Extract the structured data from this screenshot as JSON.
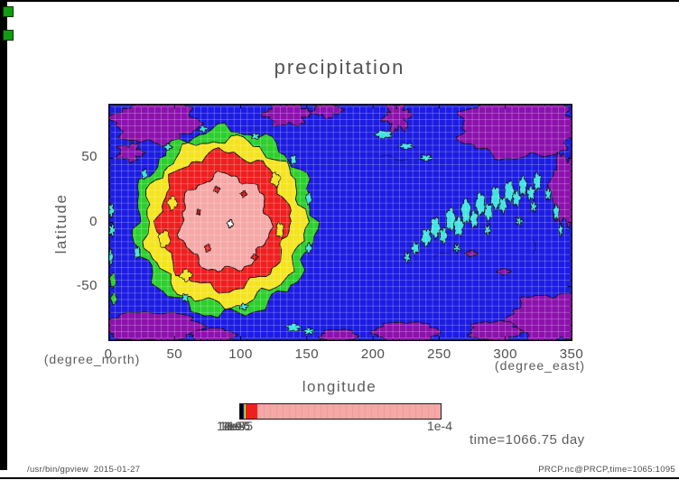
{
  "title": "precipitation",
  "axes": {
    "x": {
      "label": "longitude",
      "unit": "(degree_east)",
      "ticks": [
        "0",
        "50",
        "100",
        "150",
        "200",
        "250",
        "300",
        "350"
      ]
    },
    "y": {
      "label": "latitude",
      "unit": "(degree_north)",
      "ticks": [
        "50",
        "0",
        "-50"
      ]
    }
  },
  "colorbar": {
    "left_labels": [
      "1e-9",
      "1e-8",
      "1e-7",
      "1e-6",
      "1e-5"
    ],
    "right_label": "1e-4"
  },
  "annotations": {
    "time": "time=1066.75 day"
  },
  "footer": {
    "left": "/usr/bin/gpview  2015-01-27",
    "right": "PRCP.nc@PRCP,time=1065:1095"
  },
  "colors": {
    "background": "#ffffff",
    "map_blue": "#1c1ce2",
    "map_purple": "#8d11ad",
    "map_cyan": "#3fe2e2",
    "map_green": "#2ccf2c",
    "map_yellow": "#f4e41f",
    "map_red": "#ef1f1f",
    "map_pink": "#f5a8a6",
    "text_gray": "#5c5c5c",
    "wm_button_green": "#0d9d0d"
  },
  "chart_data": {
    "type": "heatmap",
    "subtype": "filled-contour-map",
    "title": "precipitation",
    "xlabel": "longitude",
    "ylabel": "latitude",
    "x_unit": "(degree_east)",
    "y_unit": "(degree_north)",
    "xlim": [
      0,
      351
    ],
    "ylim": [
      -92,
      92
    ],
    "xticks": [
      0,
      50,
      100,
      150,
      200,
      250,
      300,
      350
    ],
    "yticks": [
      -50,
      0,
      50
    ],
    "grid": true,
    "grid_interval_deg": 5,
    "contour_levels": [
      "1e-9",
      "1e-8",
      "1e-7",
      "1e-6",
      "1e-5",
      "1e-4"
    ],
    "color_bands": [
      {
        "range": "below 1e-9",
        "color": "#8d11ad",
        "name": "purple"
      },
      {
        "range": "1e-9 to 1e-8",
        "color": "#1c1ce2",
        "name": "blue"
      },
      {
        "range": "1e-8 to 1e-7",
        "color": "#3fe2e2",
        "name": "cyan"
      },
      {
        "range": "1e-7 to 1e-6",
        "color": "#2ccf2c",
        "name": "green"
      },
      {
        "range": "1e-6 to 1e-5",
        "color": "#f4e41f",
        "name": "yellow"
      },
      {
        "range": "1e-5 to 2e-5",
        "color": "#ef1f1f",
        "name": "red"
      },
      {
        "range": "2e-5 to 1e-4",
        "color": "#f5a8a6",
        "name": "pink"
      },
      {
        "range": "above 1e-4",
        "color": "#ffffff",
        "name": "white"
      }
    ],
    "features": [
      {
        "name": "precipitation-maximum",
        "center": {
          "lon": 100,
          "lat": 0
        },
        "description": "concentric filled contours (pink core, red, yellow, green rings) spanning lon 20-160, lat -65..65, tiny white spot at the very center"
      },
      {
        "name": "cyan-wave-train",
        "region": {
          "lon": [
            240,
            330
          ],
          "lat": [
            -10,
            45
          ]
        },
        "description": "band of small cyan blobs slanting up to the northeast"
      },
      {
        "name": "purple-low-regions",
        "description": "irregular purple patches along top, bottom and right edges of the map"
      }
    ],
    "annotation": "time=1066.75 day",
    "data_source_label": "PRCP.nc@PRCP,time=1065:1095"
  }
}
